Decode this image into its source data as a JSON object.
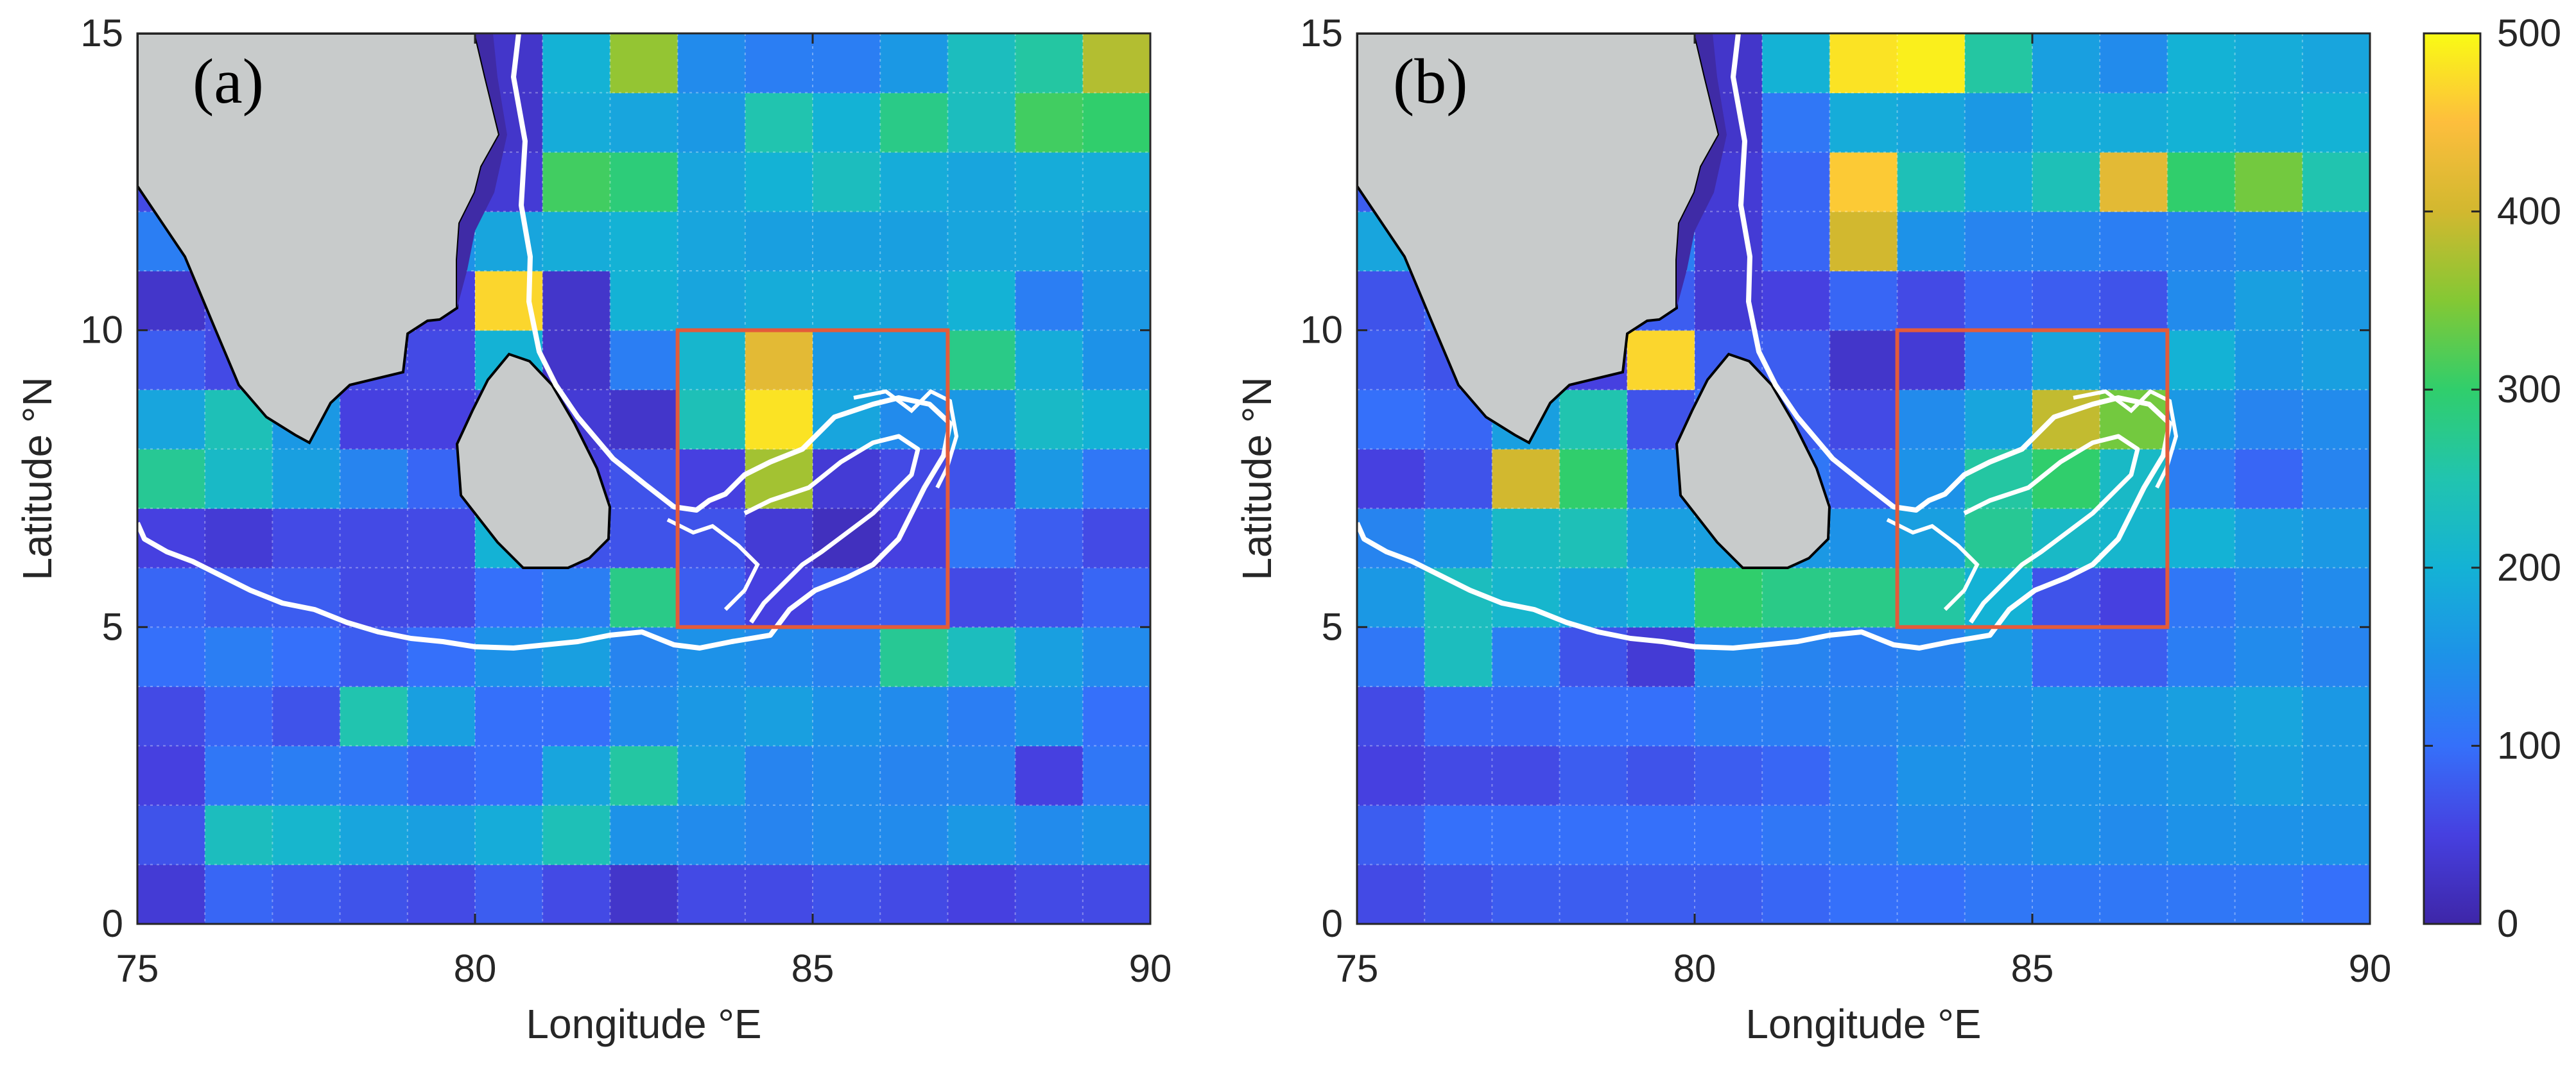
{
  "chart_data": [
    {
      "type": "heatmap",
      "panel_label": "(a)",
      "xlabel": "Longitude °E",
      "ylabel": "Latitude °N",
      "xlim": [
        75,
        90
      ],
      "ylim": [
        0,
        15
      ],
      "xticks": [
        "75",
        "80",
        "85",
        "90"
      ],
      "yticks": [
        "0",
        "5",
        "10",
        "15"
      ],
      "cell_size_deg": 1,
      "grid": true,
      "box": {
        "lon": [
          83,
          87
        ],
        "lat": [
          5,
          10
        ]
      },
      "values": [
        [
          40,
          90,
          80,
          70,
          60,
          80,
          60,
          30,
          60,
          60,
          70,
          60,
          50,
          60,
          60
        ],
        [
          70,
          230,
          210,
          180,
          170,
          190,
          240,
          150,
          140,
          130,
          140,
          140,
          160,
          140,
          150
        ],
        [
          50,
          110,
          120,
          110,
          90,
          100,
          180,
          260,
          170,
          130,
          140,
          130,
          130,
          50,
          110
        ],
        [
          60,
          90,
          70,
          250,
          170,
          100,
          100,
          140,
          160,
          170,
          150,
          140,
          120,
          150,
          100
        ],
        [
          100,
          120,
          100,
          80,
          100,
          150,
          170,
          130,
          150,
          140,
          130,
          270,
          230,
          170,
          140
        ],
        [
          90,
          80,
          80,
          60,
          60,
          100,
          120,
          280,
          80,
          50,
          80,
          80,
          60,
          70,
          90
        ],
        [
          50,
          40,
          60,
          60,
          60,
          200,
          70,
          70,
          70,
          40,
          20,
          50,
          110,
          80,
          60
        ],
        [
          270,
          220,
          170,
          130,
          90,
          70,
          50,
          70,
          50,
          370,
          40,
          60,
          70,
          160,
          110
        ],
        [
          180,
          240,
          160,
          50,
          50,
          60,
          40,
          30,
          240,
          480,
          180,
          140,
          160,
          220,
          200
        ],
        [
          80,
          60,
          40,
          60,
          60,
          200,
          30,
          120,
          210,
          420,
          160,
          170,
          280,
          190,
          150
        ],
        [
          30,
          60,
          60,
          50,
          50,
          470,
          30,
          200,
          180,
          190,
          190,
          180,
          200,
          120,
          160
        ],
        [
          120,
          60,
          150,
          160,
          150,
          180,
          190,
          200,
          180,
          170,
          170,
          170,
          180,
          180,
          170
        ],
        [
          60,
          100,
          170,
          160,
          160,
          40,
          310,
          290,
          180,
          200,
          230,
          190,
          180,
          190,
          190
        ],
        [
          90,
          170,
          180,
          180,
          180,
          30,
          190,
          180,
          160,
          250,
          200,
          280,
          230,
          310,
          300
        ],
        [
          100,
          110,
          120,
          160,
          180,
          30,
          200,
          360,
          140,
          120,
          120,
          160,
          230,
          260,
          380
        ]
      ]
    },
    {
      "type": "heatmap",
      "panel_label": "(b)",
      "xlabel": "Longitude °E",
      "ylabel": "Latitude °N",
      "xlim": [
        75,
        90
      ],
      "ylim": [
        0,
        15
      ],
      "xticks": [
        "75",
        "80",
        "85",
        "90"
      ],
      "yticks": [
        "0",
        "5",
        "10",
        "15"
      ],
      "cell_size_deg": 1,
      "grid": true,
      "box": {
        "lon": [
          83,
          87
        ],
        "lat": [
          5,
          10
        ]
      },
      "colorbar": {
        "min": 0,
        "max": 500,
        "ticks": [
          "0",
          "100",
          "200",
          "300",
          "400",
          "500"
        ]
      },
      "values": [
        [
          60,
          70,
          80,
          80,
          80,
          80,
          90,
          100,
          100,
          110,
          110,
          110,
          110,
          110,
          100
        ],
        [
          80,
          100,
          100,
          100,
          100,
          100,
          110,
          120,
          140,
          140,
          150,
          140,
          150,
          150,
          150
        ],
        [
          50,
          60,
          60,
          80,
          70,
          80,
          90,
          120,
          150,
          150,
          150,
          150,
          160,
          170,
          160
        ],
        [
          60,
          90,
          90,
          100,
          100,
          120,
          120,
          130,
          140,
          150,
          160,
          160,
          170,
          180,
          160
        ],
        [
          110,
          230,
          120,
          70,
          40,
          140,
          130,
          120,
          130,
          160,
          90,
          80,
          120,
          140,
          130
        ],
        [
          160,
          230,
          210,
          180,
          200,
          300,
          280,
          280,
          260,
          200,
          70,
          50,
          110,
          130,
          140
        ],
        [
          130,
          160,
          220,
          240,
          170,
          170,
          160,
          150,
          170,
          270,
          220,
          210,
          200,
          170,
          160
        ],
        [
          50,
          70,
          400,
          300,
          130,
          110,
          110,
          80,
          150,
          260,
          300,
          220,
          120,
          90,
          130
        ],
        [
          100,
          90,
          170,
          250,
          70,
          100,
          80,
          60,
          140,
          180,
          390,
          340,
          160,
          130,
          140
        ],
        [
          80,
          70,
          60,
          50,
          470,
          80,
          80,
          30,
          40,
          120,
          180,
          140,
          200,
          160,
          170
        ],
        [
          70,
          90,
          130,
          110,
          80,
          40,
          50,
          90,
          60,
          90,
          80,
          70,
          140,
          170,
          160
        ],
        [
          180,
          200,
          170,
          190,
          120,
          40,
          90,
          400,
          150,
          130,
          130,
          120,
          130,
          140,
          150
        ],
        [
          80,
          60,
          70,
          60,
          50,
          40,
          90,
          460,
          240,
          190,
          240,
          420,
          300,
          340,
          250
        ],
        [
          90,
          100,
          110,
          100,
          90,
          30,
          110,
          190,
          180,
          160,
          190,
          190,
          200,
          190,
          200
        ],
        [
          100,
          120,
          120,
          130,
          140,
          30,
          200,
          480,
          490,
          260,
          170,
          140,
          200,
          190,
          180
        ]
      ]
    }
  ]
}
